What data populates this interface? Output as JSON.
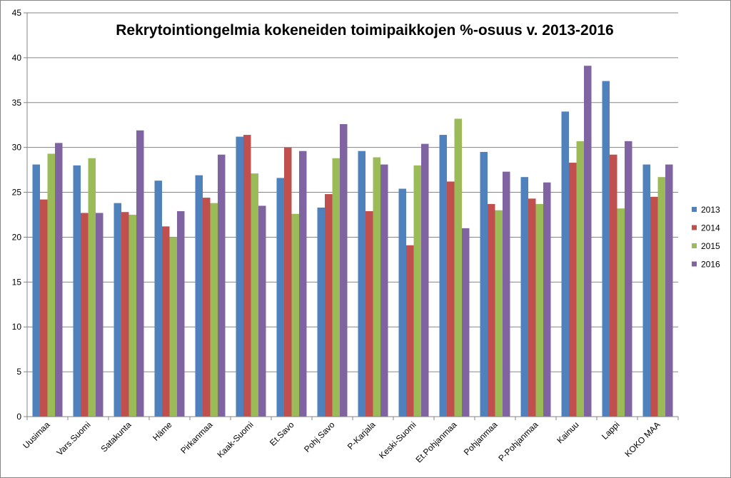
{
  "chart_data": {
    "type": "bar",
    "title": "Rekrytointiongelmia kokeneiden toimipaikkojen %-osuus v. 2013-2016",
    "xlabel": "",
    "ylabel": "",
    "ylim": [
      0,
      45
    ],
    "yticks": [
      "0",
      "5",
      "10",
      "15",
      "20",
      "25",
      "30",
      "35",
      "40",
      "45"
    ],
    "grid": true,
    "legend_position": "right",
    "categories": [
      "Uusimaa",
      "Vars.Suomi",
      "Satakunta",
      "Häme",
      "Pirkanmaa",
      "Kaak-Suomi",
      "Et.Savo",
      "Pohj.Savo",
      "P-Karjala",
      "Keski-Suomi",
      "Et.Pohjanmaa",
      "Pohjanmaa",
      "P-Pohjanmaa",
      "Kainuu",
      "Lappi",
      "KOKO MAA"
    ],
    "series": [
      {
        "name": "2013",
        "color": "#4f81bd",
        "values": [
          28.1,
          28.0,
          23.8,
          26.3,
          26.9,
          31.2,
          26.6,
          23.3,
          29.6,
          25.4,
          31.4,
          29.5,
          26.7,
          34.0,
          37.4,
          28.1
        ]
      },
      {
        "name": "2014",
        "color": "#c0504d",
        "values": [
          24.2,
          22.7,
          22.8,
          21.2,
          24.4,
          31.4,
          30.0,
          24.8,
          22.9,
          19.1,
          26.2,
          23.7,
          24.3,
          28.3,
          29.2,
          24.5
        ]
      },
      {
        "name": "2015",
        "color": "#9bbb59",
        "values": [
          29.3,
          28.8,
          22.5,
          20.0,
          23.8,
          27.1,
          22.6,
          28.8,
          28.9,
          28.0,
          33.2,
          23.0,
          23.7,
          30.7,
          23.2,
          26.7
        ]
      },
      {
        "name": "2016",
        "color": "#8064a2",
        "values": [
          30.5,
          22.7,
          31.9,
          22.9,
          29.2,
          23.5,
          29.6,
          32.6,
          28.1,
          30.4,
          21.0,
          27.3,
          26.1,
          39.1,
          30.7,
          28.1
        ]
      }
    ]
  }
}
